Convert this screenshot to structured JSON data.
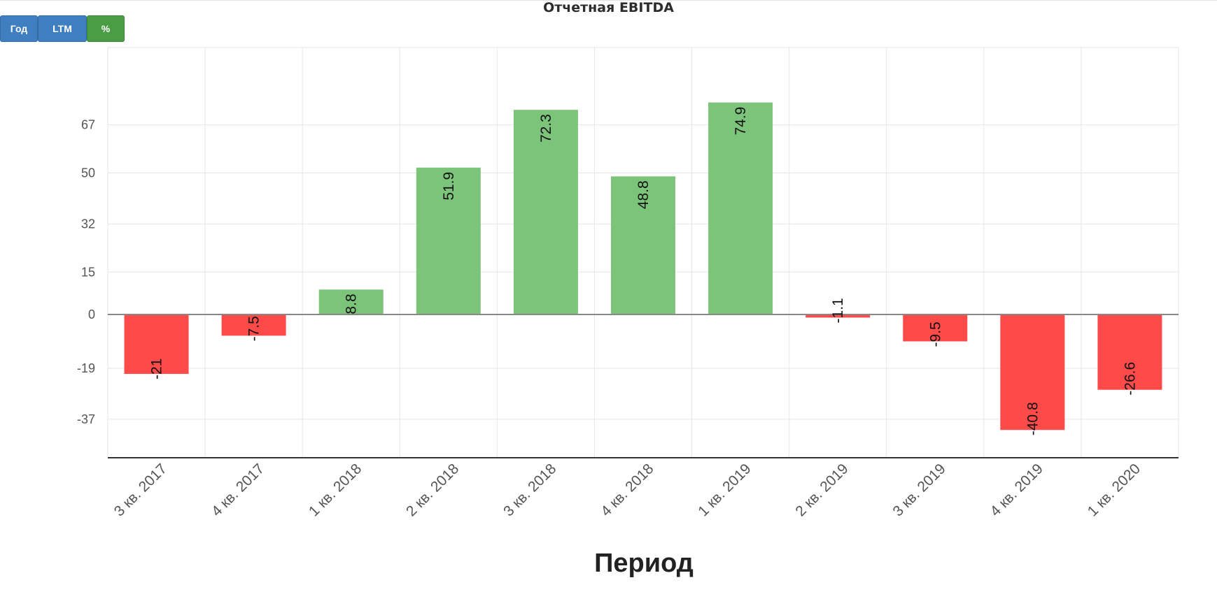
{
  "buttons": [
    {
      "label": "Год",
      "color": "#3f7fc0"
    },
    {
      "label": "LTM",
      "color": "#3f7fc0"
    },
    {
      "label": "%",
      "color": "#4a9c45"
    }
  ],
  "chart_data": {
    "type": "bar",
    "title": "Отчетная EBITDA",
    "xlabel": "Период",
    "ylabel": "",
    "categories": [
      "3 кв. 2017",
      "4 кв. 2017",
      "1 кв. 2018",
      "2 кв. 2018",
      "3 кв. 2018",
      "4 кв. 2018",
      "1 кв. 2019",
      "2 кв. 2019",
      "3 кв. 2019",
      "4 кв. 2019",
      "1 кв. 2020"
    ],
    "values": [
      -21,
      -7.5,
      8.8,
      51.9,
      72.3,
      48.8,
      74.9,
      -1.1,
      -9.5,
      -40.8,
      -26.6
    ],
    "value_labels": [
      "-21",
      "-7.5",
      "8.8",
      "51.9",
      "72.3",
      "48.8",
      "74.9",
      "-1.1",
      "-9.5",
      "-40.8",
      "-26.6"
    ],
    "ylim": [
      -44,
      80
    ],
    "yticks": [
      67,
      50,
      32,
      15,
      0,
      -19,
      -37
    ],
    "ytick_labels": [
      "67",
      "50",
      "32",
      "15",
      "0",
      "-19",
      "-37"
    ],
    "positive_color": "#7dc47b",
    "negative_color": "#ff4a4a",
    "grid": true,
    "legend": "none"
  }
}
